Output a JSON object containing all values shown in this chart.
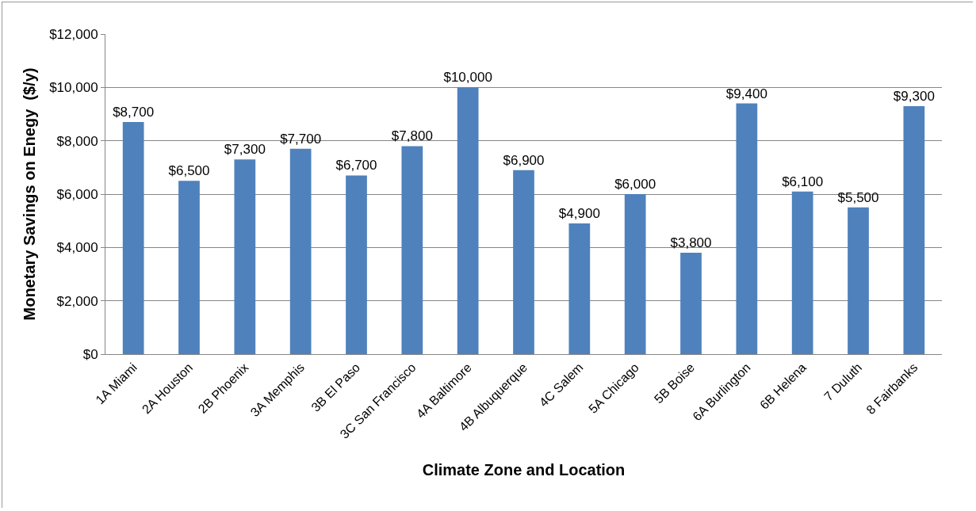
{
  "chart_data": {
    "type": "bar",
    "xlabel": "Climate Zone and Location",
    "ylabel": "Monetary Savings on Enegy  ($/y)",
    "categories": [
      "1A Miami",
      "2A Houston",
      "2B Phoenix",
      "3A Memphis",
      "3B El Paso",
      "3C San Francisco",
      "4A Baltimore",
      "4B Albuquerque",
      "4C Salem",
      "5A Chicago",
      "5B Boise",
      "6A Burlington",
      "6B Helena",
      "7 Duluth",
      "8 Fairbanks"
    ],
    "values": [
      8700,
      6500,
      7300,
      7700,
      6700,
      7800,
      10000,
      6900,
      4900,
      6000,
      3800,
      9400,
      6100,
      5500,
      9300
    ],
    "value_labels": [
      "$8,700",
      "$6,500",
      "$7,300",
      "$7,700",
      "$6,700",
      "$7,800",
      "$10,000",
      "$6,900",
      "$4,900",
      "$6,000",
      "$3,800",
      "$9,400",
      "$6,100",
      "$5,500",
      "$9,300"
    ],
    "color": "#4f81bd",
    "ylim": [
      0,
      12000
    ],
    "yticks": [
      {
        "value": 0,
        "label": "$0"
      },
      {
        "value": 2000,
        "label": "$2,000"
      },
      {
        "value": 4000,
        "label": "$4,000"
      },
      {
        "value": 6000,
        "label": "$6,000"
      },
      {
        "value": 8000,
        "label": "$8,000"
      },
      {
        "value": 10000,
        "label": "$10,000"
      },
      {
        "value": 12000,
        "label": "$12,000"
      }
    ],
    "grid": "y",
    "legend": false
  }
}
